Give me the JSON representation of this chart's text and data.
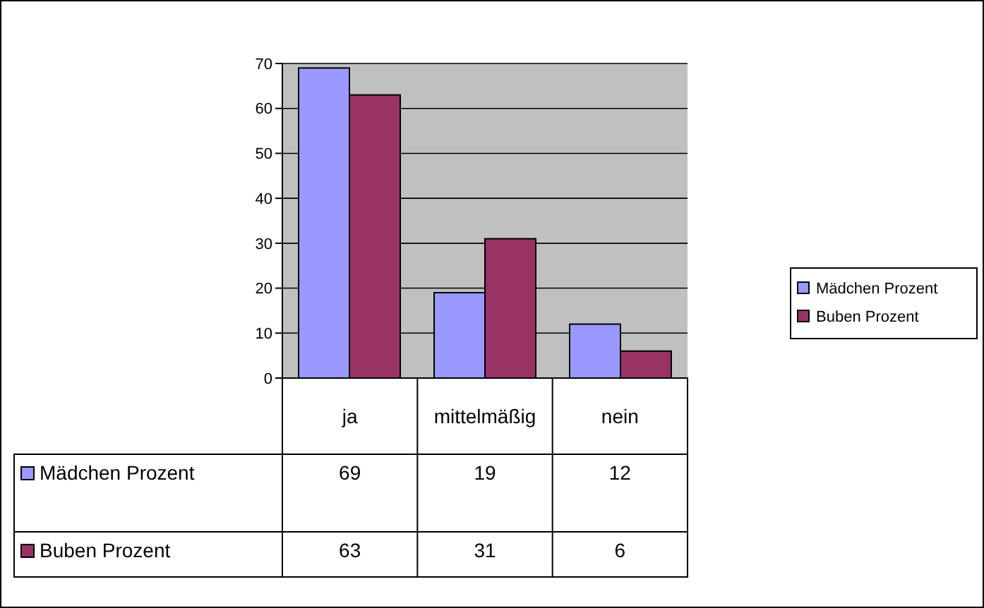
{
  "chart_data": {
    "type": "bar",
    "categories": [
      "ja",
      "mittelmäßig",
      "nein"
    ],
    "series": [
      {
        "name": "Mädchen Prozent",
        "color": "#9999ff",
        "values": [
          69,
          19,
          12
        ]
      },
      {
        "name": "Buben Prozent",
        "color": "#993366",
        "values": [
          63,
          31,
          6
        ]
      }
    ],
    "ylim": [
      0,
      70
    ],
    "yticks": [
      0,
      10,
      20,
      30,
      40,
      50,
      60,
      70
    ],
    "grid": "y",
    "legend": "right",
    "data_labels": true
  }
}
